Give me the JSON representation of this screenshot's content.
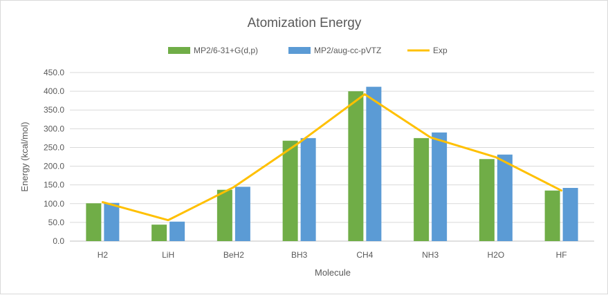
{
  "chart_data": {
    "type": "bar",
    "title": "Atomization Energy",
    "xlabel": "Molecule",
    "ylabel": "Energy (kcal/mol)",
    "ylim": [
      0,
      450
    ],
    "yticks": [
      "0.0",
      "50.0",
      "100.0",
      "150.0",
      "200.0",
      "250.0",
      "300.0",
      "350.0",
      "400.0",
      "450.0"
    ],
    "grid": true,
    "legend_position": "top",
    "categories": [
      "H2",
      "LiH",
      "BeH2",
      "BH3",
      "CH4",
      "NH3",
      "H2O",
      "HF"
    ],
    "series": [
      {
        "name": "MP2/6-31+G(d,p)",
        "kind": "bar",
        "color": "#70ad47",
        "values": [
          101,
          44,
          137,
          268,
          400,
          275,
          219,
          135
        ]
      },
      {
        "name": "MP2/aug-cc-pVTZ",
        "kind": "bar",
        "color": "#5b9bd5",
        "values": [
          102,
          52,
          145,
          275,
          412,
          290,
          231,
          142
        ]
      },
      {
        "name": "Exp",
        "kind": "line",
        "color": "#ffc000",
        "values": [
          104,
          56,
          144,
          263,
          392,
          277,
          224,
          135
        ]
      }
    ]
  }
}
